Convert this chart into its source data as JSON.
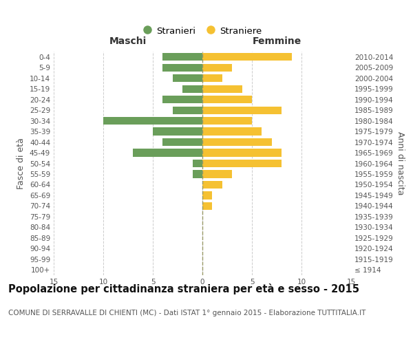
{
  "age_groups": [
    "100+",
    "95-99",
    "90-94",
    "85-89",
    "80-84",
    "75-79",
    "70-74",
    "65-69",
    "60-64",
    "55-59",
    "50-54",
    "45-49",
    "40-44",
    "35-39",
    "30-34",
    "25-29",
    "20-24",
    "15-19",
    "10-14",
    "5-9",
    "0-4"
  ],
  "birth_years": [
    "≤ 1914",
    "1915-1919",
    "1920-1924",
    "1925-1929",
    "1930-1934",
    "1935-1939",
    "1940-1944",
    "1945-1949",
    "1950-1954",
    "1955-1959",
    "1960-1964",
    "1965-1969",
    "1970-1974",
    "1975-1979",
    "1980-1984",
    "1985-1989",
    "1990-1994",
    "1995-1999",
    "2000-2004",
    "2005-2009",
    "2010-2014"
  ],
  "males": [
    0,
    0,
    0,
    0,
    0,
    0,
    0,
    0,
    0,
    1,
    1,
    7,
    4,
    5,
    10,
    3,
    4,
    2,
    3,
    4,
    4
  ],
  "females": [
    0,
    0,
    0,
    0,
    0,
    0,
    1,
    1,
    2,
    3,
    8,
    8,
    7,
    6,
    5,
    8,
    5,
    4,
    2,
    3,
    9
  ],
  "male_color": "#6a9e5a",
  "female_color": "#f5c132",
  "background_color": "#ffffff",
  "grid_color": "#cccccc",
  "title": "Popolazione per cittadinanza straniera per età e sesso - 2015",
  "subtitle": "COMUNE DI SERRAVALLE DI CHIENTI (MC) - Dati ISTAT 1° gennaio 2015 - Elaborazione TUTTITALIA.IT",
  "ylabel_left": "Fasce di età",
  "ylabel_right": "Anni di nascita",
  "xlabel_left": "Maschi",
  "xlabel_right": "Femmine",
  "legend_male": "Stranieri",
  "legend_female": "Straniere",
  "xlim": 15,
  "title_fontsize": 10.5,
  "subtitle_fontsize": 7.5,
  "axis_label_fontsize": 9,
  "tick_fontsize": 7.5,
  "maschi_femmine_fontsize": 10
}
